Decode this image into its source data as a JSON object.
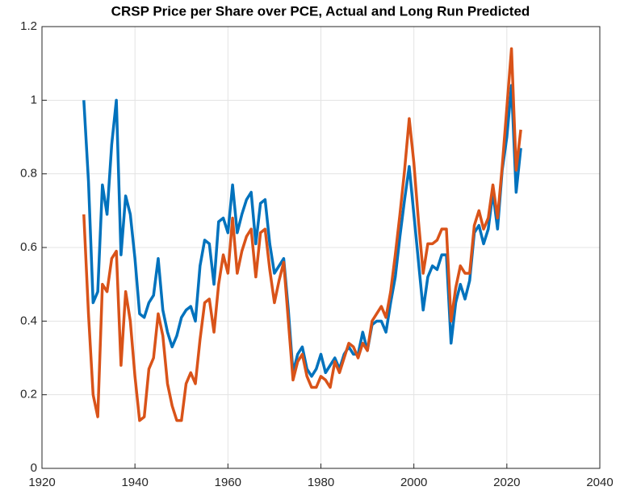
{
  "chart_data": {
    "type": "line",
    "title": "CRSP Price per Share over PCE, Actual and Long Run Predicted",
    "x": [
      1929,
      1930,
      1931,
      1932,
      1933,
      1934,
      1935,
      1936,
      1937,
      1938,
      1939,
      1940,
      1941,
      1942,
      1943,
      1944,
      1945,
      1946,
      1947,
      1948,
      1949,
      1950,
      1951,
      1952,
      1953,
      1954,
      1955,
      1956,
      1957,
      1958,
      1959,
      1960,
      1961,
      1962,
      1963,
      1964,
      1965,
      1966,
      1967,
      1968,
      1969,
      1970,
      1971,
      1972,
      1973,
      1974,
      1975,
      1976,
      1977,
      1978,
      1979,
      1980,
      1981,
      1982,
      1983,
      1984,
      1985,
      1986,
      1987,
      1988,
      1989,
      1990,
      1991,
      1992,
      1993,
      1994,
      1995,
      1996,
      1997,
      1998,
      1999,
      2000,
      2001,
      2002,
      2003,
      2004,
      2005,
      2006,
      2007,
      2008,
      2009,
      2010,
      2011,
      2012,
      2013,
      2014,
      2015,
      2016,
      2017,
      2018,
      2019,
      2020,
      2021,
      2022,
      2023
    ],
    "series": [
      {
        "color": "#0072bd",
        "values": [
          1.0,
          0.78,
          0.45,
          0.48,
          0.77,
          0.69,
          0.88,
          1.0,
          0.58,
          0.74,
          0.69,
          0.57,
          0.42,
          0.41,
          0.45,
          0.47,
          0.57,
          0.43,
          0.37,
          0.33,
          0.36,
          0.41,
          0.43,
          0.44,
          0.4,
          0.55,
          0.62,
          0.61,
          0.5,
          0.67,
          0.68,
          0.64,
          0.77,
          0.64,
          0.69,
          0.73,
          0.75,
          0.61,
          0.72,
          0.73,
          0.61,
          0.53,
          0.55,
          0.57,
          0.43,
          0.26,
          0.31,
          0.33,
          0.27,
          0.25,
          0.27,
          0.31,
          0.26,
          0.28,
          0.3,
          0.27,
          0.31,
          0.33,
          0.31,
          0.31,
          0.37,
          0.32,
          0.39,
          0.4,
          0.4,
          0.37,
          0.45,
          0.52,
          0.63,
          0.73,
          0.82,
          0.69,
          0.56,
          0.43,
          0.52,
          0.55,
          0.54,
          0.58,
          0.58,
          0.34,
          0.45,
          0.5,
          0.46,
          0.51,
          0.64,
          0.66,
          0.61,
          0.65,
          0.75,
          0.65,
          0.81,
          0.9,
          1.04,
          0.75,
          0.87
        ]
      },
      {
        "color": "#d95319",
        "values": [
          0.69,
          0.42,
          0.2,
          0.14,
          0.5,
          0.48,
          0.57,
          0.59,
          0.28,
          0.48,
          0.4,
          0.25,
          0.13,
          0.14,
          0.27,
          0.3,
          0.42,
          0.36,
          0.23,
          0.17,
          0.13,
          0.13,
          0.23,
          0.26,
          0.23,
          0.35,
          0.45,
          0.46,
          0.37,
          0.5,
          0.58,
          0.53,
          0.68,
          0.53,
          0.59,
          0.63,
          0.65,
          0.52,
          0.64,
          0.65,
          0.54,
          0.45,
          0.51,
          0.56,
          0.4,
          0.24,
          0.29,
          0.31,
          0.25,
          0.22,
          0.22,
          0.25,
          0.24,
          0.22,
          0.29,
          0.26,
          0.3,
          0.34,
          0.33,
          0.3,
          0.34,
          0.32,
          0.4,
          0.42,
          0.44,
          0.41,
          0.48,
          0.58,
          0.69,
          0.81,
          0.95,
          0.83,
          0.67,
          0.53,
          0.61,
          0.61,
          0.62,
          0.65,
          0.65,
          0.4,
          0.49,
          0.55,
          0.53,
          0.53,
          0.66,
          0.7,
          0.65,
          0.68,
          0.77,
          0.68,
          0.82,
          0.98,
          1.14,
          0.81,
          0.92
        ]
      }
    ],
    "xlim": [
      1920,
      2040
    ],
    "xticks": [
      1920,
      1940,
      1960,
      1980,
      2000,
      2020,
      2040
    ],
    "ylim": [
      0,
      1.2
    ],
    "yticks": [
      0,
      0.2,
      0.4,
      0.6,
      0.8,
      1,
      1.2
    ],
    "grid": true
  }
}
